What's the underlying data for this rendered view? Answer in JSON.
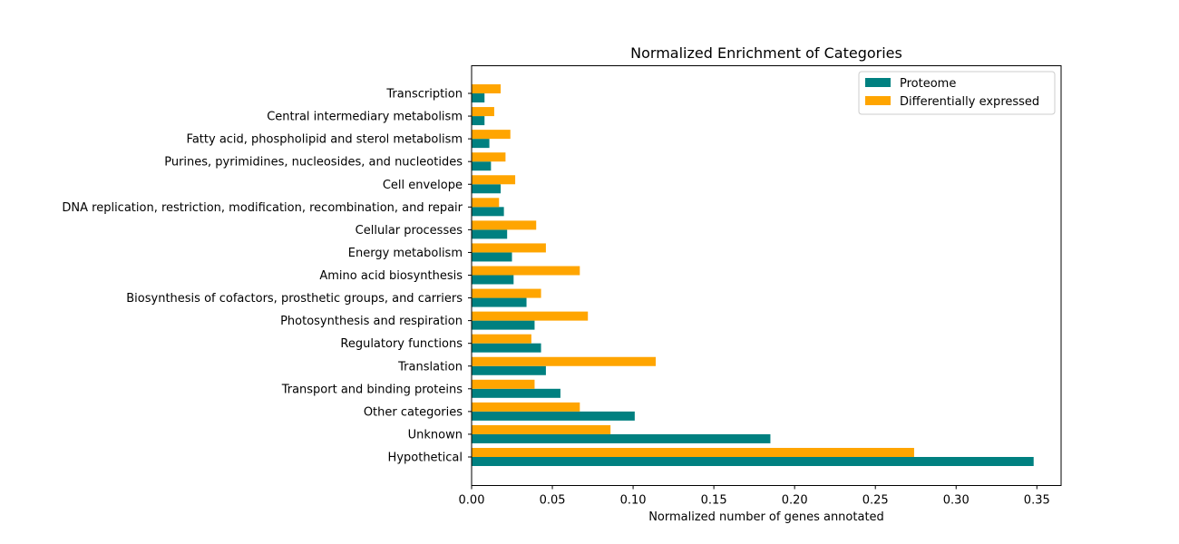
{
  "chart_data": {
    "type": "bar",
    "orientation": "horizontal",
    "title": "Normalized Enrichment of Categories",
    "xlabel": "Normalized number of genes annotated",
    "ylabel": "",
    "xlim": [
      0.0,
      0.365
    ],
    "xticks": [
      0.0,
      0.05,
      0.1,
      0.15,
      0.2,
      0.25,
      0.3,
      0.35
    ],
    "xtick_labels": [
      "0.00",
      "0.05",
      "0.10",
      "0.15",
      "0.20",
      "0.25",
      "0.30",
      "0.35"
    ],
    "grid": false,
    "legend_position": "top-right",
    "categories": [
      "Hypothetical",
      "Unknown",
      "Other categories",
      "Transport and binding proteins",
      "Translation",
      "Regulatory functions",
      "Photosynthesis and respiration",
      "Biosynthesis of cofactors, prosthetic groups, and carriers",
      "Amino acid biosynthesis",
      "Energy metabolism",
      "Cellular processes",
      "DNA replication, restriction, modification, recombination, and repair",
      "Cell envelope",
      "Purines, pyrimidines, nucleosides, and nucleotides",
      "Fatty acid, phospholipid and sterol metabolism",
      "Central intermediary metabolism",
      "Transcription"
    ],
    "series": [
      {
        "name": "Proteome",
        "color": "#008080",
        "values": [
          0.348,
          0.185,
          0.101,
          0.055,
          0.046,
          0.043,
          0.039,
          0.034,
          0.026,
          0.025,
          0.022,
          0.02,
          0.018,
          0.012,
          0.011,
          0.008,
          0.008
        ]
      },
      {
        "name": "Differentially expressed",
        "color": "#FFA500",
        "values": [
          0.274,
          0.086,
          0.067,
          0.039,
          0.114,
          0.037,
          0.072,
          0.043,
          0.067,
          0.046,
          0.04,
          0.017,
          0.027,
          0.021,
          0.024,
          0.014,
          0.018
        ]
      }
    ]
  }
}
